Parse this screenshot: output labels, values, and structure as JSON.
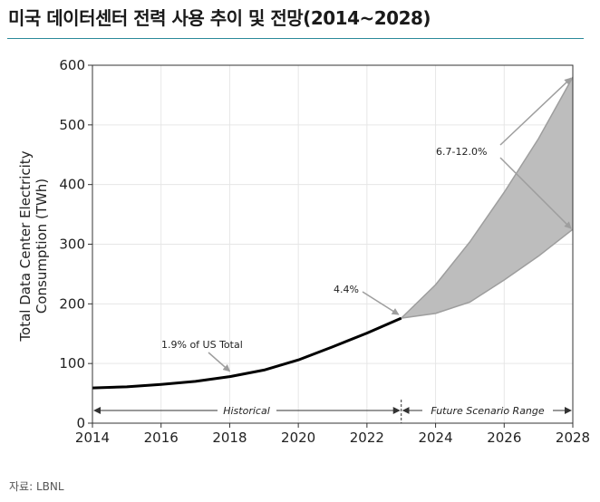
{
  "header": {
    "title": "미국 데이터센터 전력 사용 추이 및 전망(2014~2028)"
  },
  "footer": {
    "source": "자료: LBNL"
  },
  "chart_data": {
    "type": "line",
    "ylabel": "Total Data Center Electricity\nConsumption (TWh)",
    "xlim": [
      2014,
      2028
    ],
    "ylim": [
      0,
      600
    ],
    "xticks": [
      2014,
      2016,
      2018,
      2020,
      2022,
      2024,
      2026,
      2028
    ],
    "yticks": [
      0,
      100,
      200,
      300,
      400,
      500,
      600
    ],
    "grid": true,
    "historical": {
      "x": [
        2014,
        2015,
        2016,
        2017,
        2018,
        2019,
        2020,
        2021,
        2022,
        2023
      ],
      "y": [
        59,
        61,
        65,
        70,
        78,
        89,
        106,
        128,
        151,
        176
      ]
    },
    "projection_upper": {
      "x": [
        2023,
        2024,
        2025,
        2026,
        2027,
        2028
      ],
      "y": [
        176,
        232,
        304,
        387,
        477,
        580
      ]
    },
    "projection_lower": {
      "x": [
        2023,
        2024,
        2025,
        2026,
        2027,
        2028
      ],
      "y": [
        176,
        184,
        203,
        240,
        280,
        325
      ]
    },
    "annotations": [
      {
        "text": "1.9% of US Total",
        "point": [
          2018,
          78
        ]
      },
      {
        "text": "4.4%",
        "point": [
          2023,
          176
        ]
      },
      {
        "text": "6.7-12.0%",
        "points": [
          [
            2028,
            580
          ],
          [
            2028,
            325
          ]
        ]
      }
    ],
    "period_labels": {
      "historical": "Historical",
      "future": "Future Scenario Range"
    },
    "colors": {
      "historical_line": "#000000",
      "range_fill": "#bdbdbd",
      "range_edge": "#9e9e9e",
      "arrow": "#9e9e9e"
    }
  }
}
